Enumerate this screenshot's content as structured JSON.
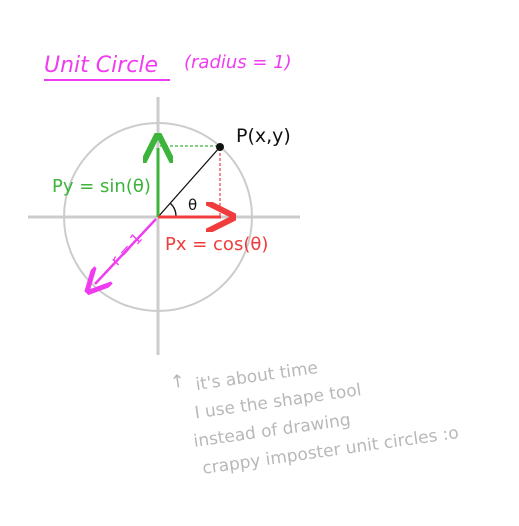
{
  "title": "Unit Circle",
  "title_suffix": "(radius = 1)",
  "point_label": "P(x,y)",
  "theta_label": "θ",
  "py_label": "Py = sin(θ)",
  "px_label": "Px = cos(θ)",
  "radius_label": "r = 1",
  "note_arrow": "↑",
  "note_lines": [
    "it's about time",
    "I use the shape tool",
    "instead of drawing",
    "crappy imposter unit circles :o"
  ],
  "colors": {
    "title": "#f03cf0",
    "sin": "#3cb43c",
    "cos": "#f03c3c",
    "radius": "#f03cf0",
    "circle": "#cccccc",
    "axes": "#cccccc",
    "note": "#b8b8b8",
    "ink": "#111111"
  }
}
